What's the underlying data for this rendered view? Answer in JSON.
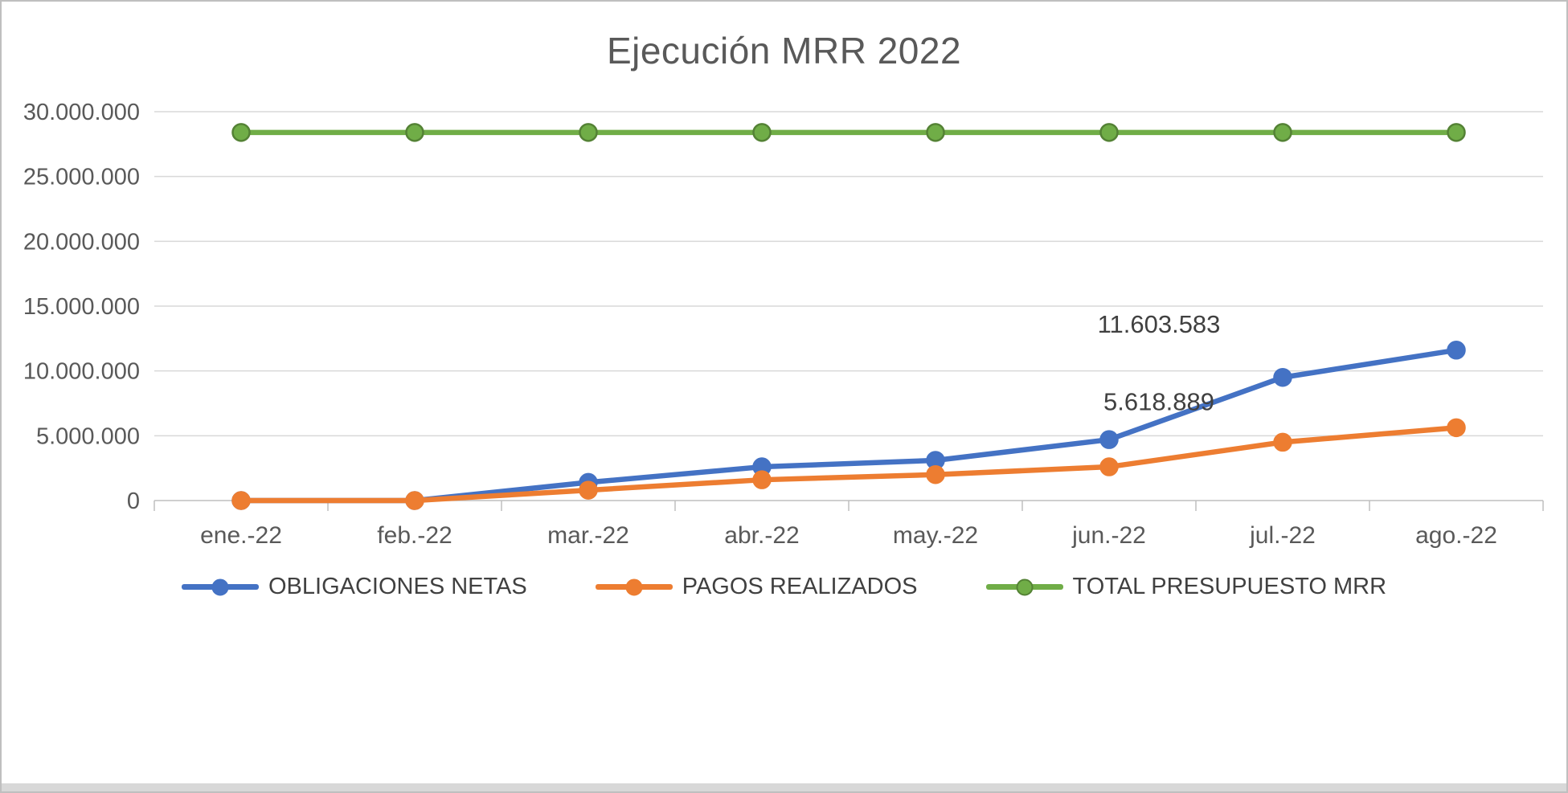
{
  "chart_data": {
    "type": "line",
    "title": "Ejecución MRR 2022",
    "categories": [
      "ene.-22",
      "feb.-22",
      "mar.-22",
      "abr.-22",
      "may.-22",
      "jun.-22",
      "jul.-22",
      "ago.-22"
    ],
    "series": [
      {
        "name": "OBLIGACIONES NETAS",
        "color": "#4472C4",
        "marker_border": "#4472C4",
        "values": [
          0,
          0,
          1400000,
          2600000,
          3100000,
          4700000,
          9500000,
          11603583
        ]
      },
      {
        "name": "PAGOS REALIZADOS",
        "color": "#ED7D31",
        "marker_border": "#ED7D31",
        "values": [
          0,
          0,
          800000,
          1600000,
          2000000,
          2600000,
          4500000,
          5618889
        ]
      },
      {
        "name": "TOTAL PRESUPUESTO MRR",
        "color": "#70AD47",
        "marker_border": "#548235",
        "values": [
          28400000,
          28400000,
          28400000,
          28400000,
          28400000,
          28400000,
          28400000,
          28400000
        ]
      }
    ],
    "yticks": [
      {
        "value": 0,
        "label": "0"
      },
      {
        "value": 5000000,
        "label": "5.000.000"
      },
      {
        "value": 10000000,
        "label": "10.000.000"
      },
      {
        "value": 15000000,
        "label": "15.000.000"
      },
      {
        "value": 20000000,
        "label": "20.000.000"
      },
      {
        "value": 25000000,
        "label": "25.000.000"
      },
      {
        "value": 30000000,
        "label": "30.000.000"
      }
    ],
    "ylim": [
      0,
      30000000
    ],
    "xlabel": "",
    "ylabel": "",
    "grid": "horizontal",
    "legend_position": "bottom",
    "annotations": [
      {
        "series_index": 0,
        "point_index": 7,
        "text": "11.603.583"
      },
      {
        "series_index": 1,
        "point_index": 7,
        "text": "5.618.889"
      }
    ],
    "colors": {
      "title": "#595959",
      "axis_text": "#595959",
      "grid": "#D9D9D9",
      "axis_line": "#BFBFBF",
      "label_text": "#404040",
      "background": "#FFFFFF",
      "border": "#BFBFBF"
    }
  }
}
